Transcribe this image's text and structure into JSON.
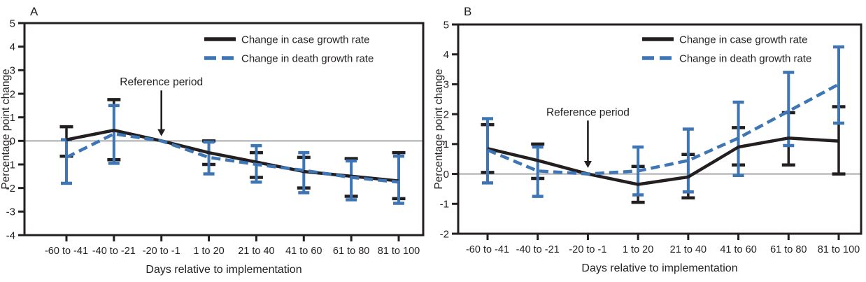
{
  "figure_title": "",
  "colors": {
    "case_line": "#231f20",
    "death_line": "#3e76b5",
    "zero_line": "#a8aaad",
    "frame": "#231f20",
    "text": "#231f20",
    "background": "#ffffff"
  },
  "chart_data": [
    {
      "panel_label": "A",
      "type": "line",
      "xlabel": "Days relative to implementation",
      "ylabel": "Percentage point change",
      "categories": [
        "-60 to -41",
        "-40 to -21",
        "-20 to -1",
        "1 to 20",
        "21 to 40",
        "41 to 60",
        "61 to 80",
        "81 to 100"
      ],
      "ylim": [
        -4,
        5
      ],
      "yticks": [
        5,
        4,
        3,
        2,
        1,
        0,
        -1,
        -2,
        -3,
        -4
      ],
      "grid": false,
      "zero_line": true,
      "legend_position": "top-right",
      "annotation": {
        "text": "Reference period",
        "category_index": 2,
        "text_y": 2.35,
        "tip_y": 0.2
      },
      "series": [
        {
          "name": "Change in case growth rate",
          "style": "solid",
          "color": "#231f20",
          "values": [
            0.05,
            0.45,
            0,
            -0.5,
            -0.9,
            -1.3,
            -1.5,
            -1.7
          ],
          "err_lo": [
            -0.65,
            -0.8,
            null,
            -1.0,
            -1.55,
            -2.0,
            -2.35,
            -2.45
          ],
          "err_hi": [
            0.6,
            1.75,
            null,
            0.0,
            -0.5,
            -0.7,
            -0.75,
            -0.5
          ]
        },
        {
          "name": "Change in death growth rate",
          "style": "dashed",
          "color": "#3e76b5",
          "values": [
            -0.7,
            0.3,
            0,
            -0.7,
            -1.0,
            -1.25,
            -1.55,
            -1.75
          ],
          "err_lo": [
            -1.8,
            -0.95,
            null,
            -1.4,
            -1.75,
            -2.2,
            -2.5,
            -2.65
          ],
          "err_hi": [
            0.05,
            1.5,
            null,
            -0.05,
            -0.2,
            -0.5,
            -0.85,
            -0.65
          ]
        }
      ]
    },
    {
      "panel_label": "B",
      "type": "line",
      "xlabel": "Days relative to implementation",
      "ylabel": "Percentage point change",
      "categories": [
        "-60 to -41",
        "-40 to -21",
        "-20 to -1",
        "1 to 20",
        "21 to 40",
        "41 to 60",
        "61 to 80",
        "81 to 100"
      ],
      "ylim": [
        -2,
        5
      ],
      "yticks": [
        5,
        4,
        3,
        2,
        1,
        0,
        -1,
        -2
      ],
      "grid": false,
      "zero_line": true,
      "legend_position": "top-right",
      "annotation": {
        "text": "Reference period",
        "category_index": 2,
        "text_y": 1.95,
        "tip_y": 0.2
      },
      "series": [
        {
          "name": "Change in case growth rate",
          "style": "solid",
          "color": "#231f20",
          "values": [
            0.85,
            0.45,
            0,
            -0.35,
            -0.1,
            0.9,
            1.2,
            1.1
          ],
          "err_lo": [
            0.05,
            -0.15,
            null,
            -0.95,
            -0.8,
            0.3,
            0.3,
            0.0
          ],
          "err_hi": [
            1.65,
            1.0,
            null,
            0.25,
            0.65,
            1.55,
            2.05,
            2.25
          ]
        },
        {
          "name": "Change in death growth rate",
          "style": "dashed",
          "color": "#3e76b5",
          "values": [
            0.8,
            0.1,
            0,
            0.1,
            0.45,
            1.2,
            2.1,
            3.0
          ],
          "err_lo": [
            -0.3,
            -0.75,
            null,
            -0.7,
            -0.6,
            -0.05,
            0.95,
            1.7
          ],
          "err_hi": [
            1.85,
            0.9,
            null,
            0.9,
            1.5,
            2.4,
            3.4,
            4.25
          ]
        }
      ]
    }
  ]
}
